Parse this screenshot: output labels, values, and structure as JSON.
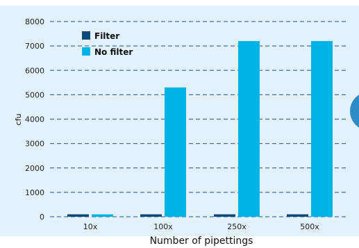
{
  "chart_data": {
    "type": "bar",
    "categories": [
      "10x",
      "100x",
      "250x",
      "500x"
    ],
    "series": [
      {
        "name": "Filter",
        "values": [
          100,
          100,
          100,
          100
        ],
        "color": "#0d4a7a"
      },
      {
        "name": "No filter",
        "values": [
          100,
          5300,
          7200,
          7200
        ],
        "color": "#00b4e8"
      }
    ],
    "xlabel": "Number of pipettings",
    "ylabel": "cfu",
    "ylim": [
      0,
      8000
    ],
    "yticks": [
      0,
      1000,
      2000,
      3000,
      4000,
      5000,
      6000,
      7000,
      8000
    ],
    "grid": true,
    "legend": "top-left",
    "background_color": "#e2f1fb",
    "grid_color": "#4a6fa5"
  }
}
